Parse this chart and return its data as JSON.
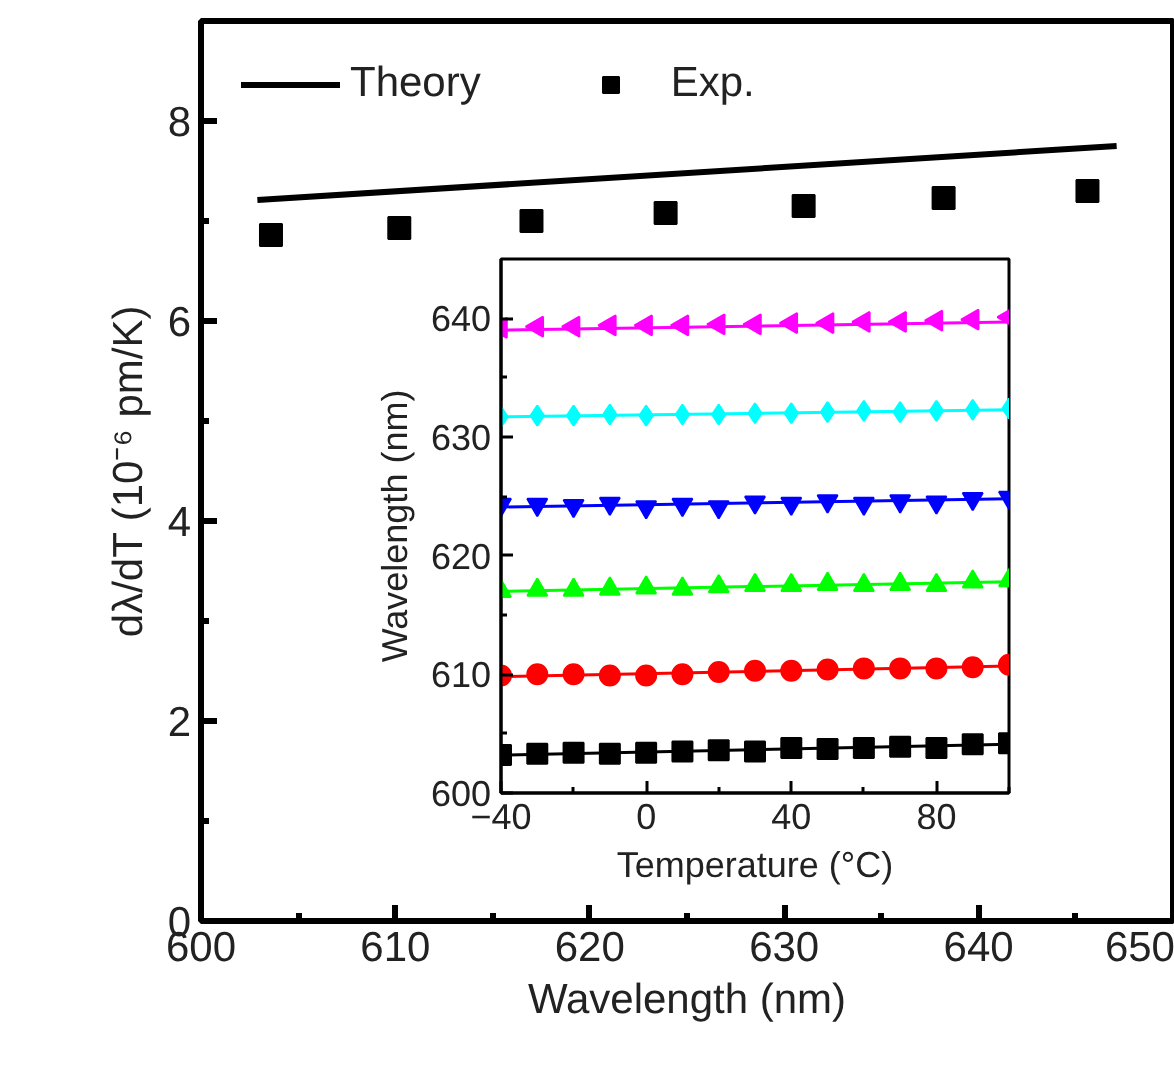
{
  "chart_data": [
    {
      "type": "scatter",
      "xlabel": "Wavelength (nm)",
      "ylabel": "dλ/dT (10⁻⁶ pm/K)",
      "xlim": [
        600,
        650
      ],
      "ylim": [
        0,
        9
      ],
      "xticks": [
        600,
        {
          "value": 605,
          "label": null
        },
        610,
        {
          "value": 615,
          "label": null
        },
        620,
        {
          "value": 625,
          "label": null
        },
        630,
        {
          "value": 635,
          "label": null
        },
        640,
        {
          "value": 645,
          "label": null
        },
        650
      ],
      "yticks": [
        0,
        {
          "value": 1,
          "label": null
        },
        2,
        {
          "value": 3,
          "label": null
        },
        4,
        {
          "value": 5,
          "label": null
        },
        6,
        {
          "value": 7,
          "label": null
        },
        8
      ],
      "grid": false,
      "legend": "top left",
      "series": [
        {
          "name": "Theory",
          "type": "line",
          "color": "#000000",
          "x": [
            602.9,
            647.1
          ],
          "values": [
            7.21,
            7.75
          ]
        },
        {
          "name": "Exp.",
          "marker": "square",
          "color": "#000000",
          "x": [
            603.6,
            610.2,
            617.0,
            623.9,
            631.0,
            638.2,
            645.6
          ],
          "values": [
            6.86,
            6.93,
            7.0,
            7.08,
            7.15,
            7.23,
            7.3
          ]
        }
      ]
    },
    {
      "type": "scatter",
      "xlabel": "Temperature (°C)",
      "ylabel": "Wavelength (nm)",
      "xlim": [
        -40,
        100
      ],
      "ylim": [
        600,
        645
      ],
      "xticks": [
        -40,
        {
          "value": -20,
          "label": null
        },
        0,
        {
          "value": 20,
          "label": null
        },
        40,
        {
          "value": 60,
          "label": null
        },
        80,
        {
          "value": 100,
          "label": null
        }
      ],
      "yticks": [
        600,
        {
          "value": 605,
          "label": null
        },
        610,
        {
          "value": 615,
          "label": null
        },
        620,
        {
          "value": 625,
          "label": null
        },
        630,
        {
          "value": 635,
          "label": null
        },
        640
      ],
      "grid": false,
      "legend": false,
      "x": [
        -40,
        -30,
        -20,
        -10,
        0,
        10,
        20,
        30,
        40,
        50,
        60,
        70,
        80,
        90,
        100
      ],
      "series": [
        {
          "marker": "square",
          "color": "#000000",
          "values": [
            603.2,
            603.3,
            603.4,
            603.3,
            603.4,
            603.5,
            603.6,
            603.5,
            603.8,
            603.7,
            603.8,
            603.9,
            603.8,
            604.1,
            604.2
          ]
        },
        {
          "marker": "circle",
          "color": "#ff0000",
          "values": [
            609.9,
            610.0,
            610.0,
            609.9,
            609.9,
            610.0,
            610.2,
            610.3,
            610.3,
            610.4,
            610.5,
            610.5,
            610.5,
            610.6,
            610.8
          ]
        },
        {
          "marker": "triangle",
          "color": "#00ff00",
          "values": [
            617.0,
            617.1,
            617.1,
            617.2,
            617.3,
            617.2,
            617.4,
            617.5,
            617.5,
            617.6,
            617.5,
            617.6,
            617.5,
            617.8,
            617.9
          ]
        },
        {
          "marker": "triangle_down",
          "color": "#0000ff",
          "values": [
            624.3,
            624.3,
            624.2,
            624.4,
            624.1,
            624.3,
            624.1,
            624.5,
            624.4,
            624.6,
            624.4,
            624.6,
            624.5,
            624.8,
            624.9
          ]
        },
        {
          "marker": "diamond",
          "color": "#00ffff",
          "values": [
            631.7,
            631.8,
            631.8,
            631.9,
            631.8,
            631.9,
            631.9,
            632.0,
            632.0,
            632.1,
            632.2,
            632.1,
            632.2,
            632.3,
            632.4
          ]
        },
        {
          "marker": "triangle_left",
          "color": "#ff00ff",
          "values": [
            639.2,
            639.3,
            639.3,
            639.4,
            639.4,
            639.4,
            639.5,
            639.5,
            639.6,
            639.6,
            639.7,
            639.7,
            639.8,
            639.9,
            640.1
          ]
        },
        {
          "type": "line",
          "color": "#000000",
          "x": [
            -40,
            100
          ],
          "values": [
            603.2,
            604.1
          ]
        },
        {
          "type": "line",
          "color": "#ff0000",
          "x": [
            -40,
            100
          ],
          "values": [
            609.8,
            610.7
          ]
        },
        {
          "type": "line",
          "color": "#00ff00",
          "x": [
            -40,
            100
          ],
          "values": [
            617.0,
            617.8
          ]
        },
        {
          "type": "line",
          "color": "#0000ff",
          "x": [
            -40,
            100
          ],
          "values": [
            624.1,
            624.8
          ]
        },
        {
          "type": "line",
          "color": "#00ffff",
          "x": [
            -40,
            100
          ],
          "values": [
            631.7,
            632.3
          ]
        },
        {
          "type": "line",
          "color": "#ff00ff",
          "x": [
            -40,
            100
          ],
          "values": [
            639.0,
            639.7
          ]
        }
      ]
    }
  ]
}
